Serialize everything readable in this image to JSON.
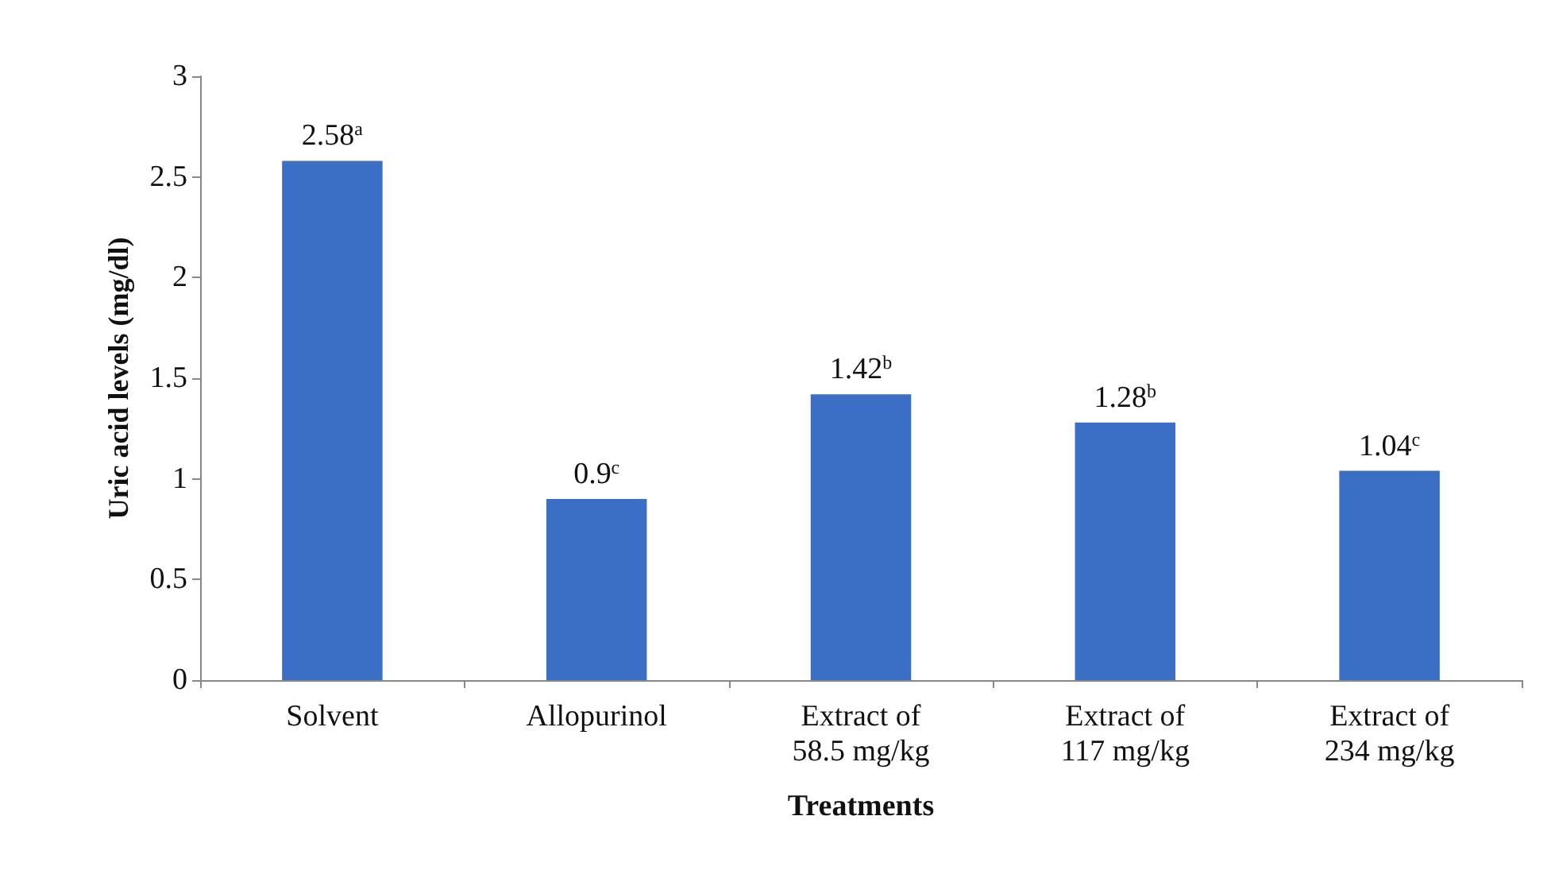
{
  "chart_data": {
    "type": "bar",
    "xlabel": "Treatments",
    "ylabel": "Uric acid levels (mg/dl)",
    "categories": [
      "Solvent",
      "Allopurinol",
      "Extract of\n58.5 mg/kg",
      "Extract of\n117 mg/kg",
      "Extract of\n234 mg/kg"
    ],
    "values": [
      2.58,
      0.9,
      1.42,
      1.28,
      1.04
    ],
    "value_labels": [
      "2.58$^{a}$",
      "0.9$^{c}$",
      "1.42$^{b}$",
      "1.28$^{b}$",
      "1.04$^{c}$"
    ],
    "color": "#3b6fc5",
    "ylim": [
      0,
      3
    ],
    "yticks": [
      0,
      0.5,
      1,
      1.5,
      2,
      2.5,
      3
    ],
    "grid": false
  }
}
